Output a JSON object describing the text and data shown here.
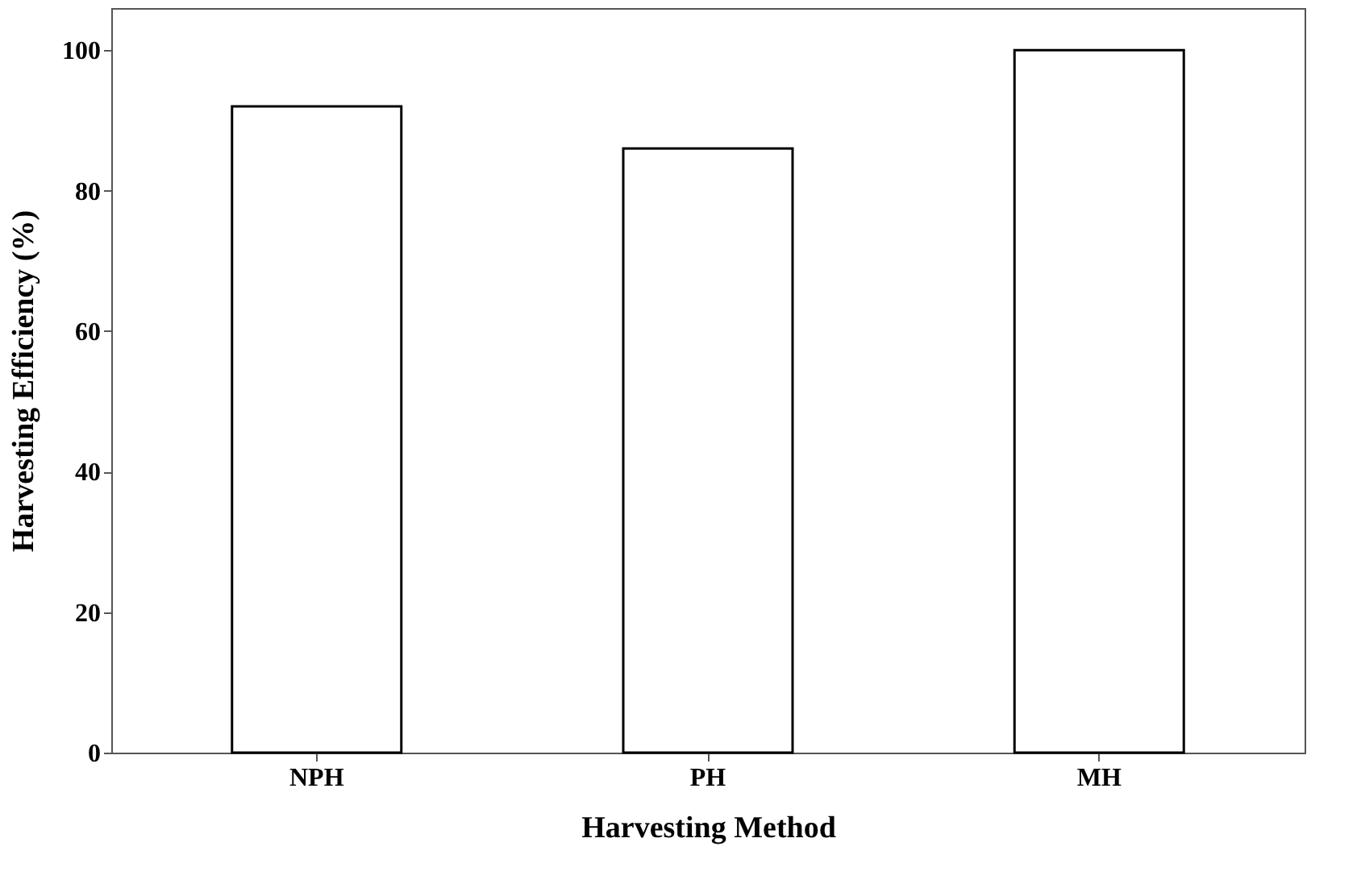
{
  "chart_data": {
    "type": "bar",
    "xlabel": "Harvesting Method",
    "ylabel": "Harvesting Efficiency (%)",
    "categories": [
      "NPH",
      "PH",
      "MH"
    ],
    "values": [
      92,
      86,
      100
    ],
    "color": "#ffffff",
    "ylim": [
      0,
      106
    ],
    "yticks": [
      0,
      20,
      40,
      60,
      80,
      100
    ],
    "grid": false
  }
}
